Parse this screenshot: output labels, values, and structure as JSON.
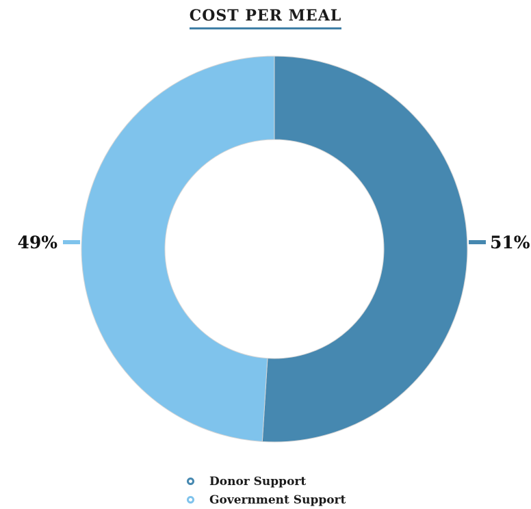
{
  "chart_data": {
    "type": "pie",
    "title": "COST PER MEAL",
    "categories": [
      "Donor Support",
      "Government Support"
    ],
    "values": [
      51,
      49
    ],
    "value_labels": [
      "51%",
      "49%"
    ],
    "colors": [
      "#4688b0",
      "#7fc3ec"
    ],
    "legend_position": "bottom"
  }
}
